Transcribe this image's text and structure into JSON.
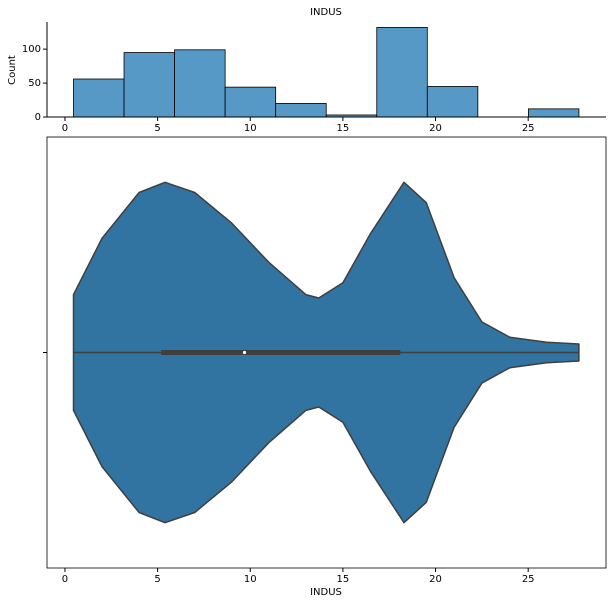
{
  "chart_data": [
    {
      "type": "histogram",
      "title": "INDUS",
      "ylabel": "Count",
      "bins": [
        0.46,
        3.188,
        5.916,
        8.644,
        11.372,
        14.1,
        16.828,
        19.556,
        22.284,
        25.012,
        27.74
      ],
      "counts": [
        56,
        95,
        99,
        44,
        20,
        3,
        132,
        45,
        0,
        12
      ],
      "color": "#5799c6",
      "xlim": [
        -0.97,
        29.2
      ],
      "xticks": [
        0,
        5,
        10,
        15,
        20,
        25
      ],
      "ylim": [
        0,
        140
      ],
      "yticks": [
        0,
        50,
        100
      ]
    },
    {
      "type": "violin",
      "xlabel": "INDUS",
      "color": "#3274a1",
      "kde": {
        "x": [
          0.46,
          2,
          4,
          5.4,
          7,
          9,
          11,
          13,
          13.7,
          15,
          16.5,
          18.3,
          19.5,
          21,
          22.5,
          24,
          26,
          27.74
        ],
        "width": [
          0.34,
          0.67,
          0.94,
          1,
          0.94,
          0.76,
          0.53,
          0.34,
          0.32,
          0.41,
          0.7,
          1,
          0.88,
          0.44,
          0.18,
          0.09,
          0.06,
          0.05
        ]
      },
      "box": {
        "min": 0.46,
        "q1": 5.19,
        "median": 9.69,
        "q3": 18.1,
        "max": 27.74
      },
      "xlim": [
        -0.97,
        29.2
      ],
      "xticks": [
        0,
        5,
        10,
        15,
        20,
        25
      ]
    }
  ]
}
